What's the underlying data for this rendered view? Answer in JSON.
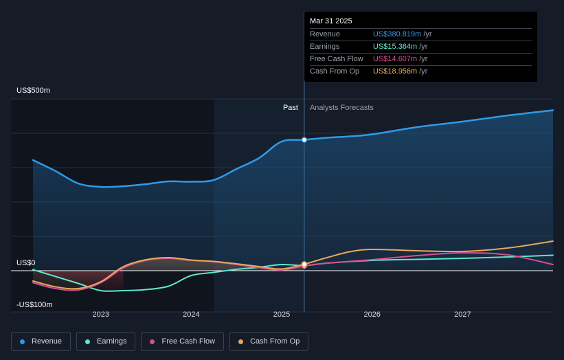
{
  "tooltip": {
    "date": "Mar 31 2025",
    "rows": [
      {
        "label": "Revenue",
        "value": "US$380.819m",
        "unit": "/yr",
        "color": "#2f9ae9"
      },
      {
        "label": "Earnings",
        "value": "US$15.364m",
        "unit": "/yr",
        "color": "#5ee6cf"
      },
      {
        "label": "Free Cash Flow",
        "value": "US$14.607m",
        "unit": "/yr",
        "color": "#d64f8e"
      },
      {
        "label": "Cash From Op",
        "value": "US$18.956m",
        "unit": "/yr",
        "color": "#e8a85c"
      }
    ]
  },
  "legend": [
    {
      "label": "Revenue",
      "color": "#2f9ae9"
    },
    {
      "label": "Earnings",
      "color": "#5ee6cf"
    },
    {
      "label": "Free Cash Flow",
      "color": "#d64f8e"
    },
    {
      "label": "Cash From Op",
      "color": "#e8a85c"
    }
  ],
  "chart_data": {
    "type": "line",
    "x_unit": "year",
    "xlim": [
      2022.25,
      2028.0
    ],
    "ylim": [
      -100,
      500
    ],
    "y_ticks": [
      {
        "value": 500,
        "label": "US$500m"
      },
      {
        "value": 0,
        "label": "US$0"
      },
      {
        "value": -100,
        "label": "-US$100m"
      }
    ],
    "x_ticks": [
      {
        "value": 2023,
        "label": "2023"
      },
      {
        "value": 2024,
        "label": "2024"
      },
      {
        "value": 2025,
        "label": "2025"
      },
      {
        "value": 2026,
        "label": "2026"
      },
      {
        "value": 2027,
        "label": "2027"
      }
    ],
    "past_label": "Past",
    "forecast_label": "Analysts Forecasts",
    "divider_x": 2025.25,
    "shade_start_x": 2024.25,
    "marker_x": 2025.25,
    "series": [
      {
        "name": "Revenue",
        "color": "#2f9ae9",
        "fill": true,
        "points": [
          [
            2022.25,
            322
          ],
          [
            2022.5,
            290
          ],
          [
            2022.75,
            254
          ],
          [
            2023.0,
            244
          ],
          [
            2023.25,
            246
          ],
          [
            2023.5,
            252
          ],
          [
            2023.75,
            260
          ],
          [
            2024.0,
            259
          ],
          [
            2024.25,
            264
          ],
          [
            2024.5,
            296
          ],
          [
            2024.75,
            328
          ],
          [
            2025.0,
            376
          ],
          [
            2025.25,
            381
          ],
          [
            2025.5,
            387
          ],
          [
            2025.75,
            391
          ],
          [
            2026.0,
            397
          ],
          [
            2026.5,
            418
          ],
          [
            2027.0,
            434
          ],
          [
            2027.5,
            452
          ],
          [
            2028.0,
            467
          ]
        ]
      },
      {
        "name": "Earnings",
        "color": "#5ee6cf",
        "fill": false,
        "points": [
          [
            2022.25,
            3
          ],
          [
            2022.5,
            -17
          ],
          [
            2022.75,
            -37
          ],
          [
            2023.0,
            -58
          ],
          [
            2023.25,
            -58
          ],
          [
            2023.5,
            -55
          ],
          [
            2023.75,
            -45
          ],
          [
            2024.0,
            -14
          ],
          [
            2024.25,
            -5
          ],
          [
            2024.5,
            4
          ],
          [
            2024.75,
            10
          ],
          [
            2025.0,
            18
          ],
          [
            2025.25,
            15
          ],
          [
            2025.5,
            22
          ],
          [
            2026.0,
            30
          ],
          [
            2026.5,
            33
          ],
          [
            2027.0,
            36
          ],
          [
            2027.5,
            40
          ],
          [
            2028.0,
            45
          ]
        ]
      },
      {
        "name": "Free Cash Flow",
        "color": "#d64f8e",
        "fill": false,
        "points": [
          [
            2022.25,
            -35
          ],
          [
            2022.5,
            -52
          ],
          [
            2022.75,
            -56
          ],
          [
            2023.0,
            -35
          ],
          [
            2023.25,
            8
          ],
          [
            2023.5,
            30
          ],
          [
            2023.75,
            36
          ],
          [
            2024.0,
            30
          ],
          [
            2024.25,
            26
          ],
          [
            2024.5,
            18
          ],
          [
            2024.75,
            9
          ],
          [
            2025.0,
            2
          ],
          [
            2025.25,
            14
          ],
          [
            2025.5,
            22
          ],
          [
            2026.0,
            32
          ],
          [
            2026.5,
            44
          ],
          [
            2027.0,
            52
          ],
          [
            2027.5,
            46
          ],
          [
            2028.0,
            18
          ]
        ]
      },
      {
        "name": "Cash From Op",
        "color": "#e8a85c",
        "fill": false,
        "points": [
          [
            2022.25,
            -30
          ],
          [
            2022.5,
            -47
          ],
          [
            2022.75,
            -52
          ],
          [
            2023.0,
            -32
          ],
          [
            2023.25,
            12
          ],
          [
            2023.5,
            32
          ],
          [
            2023.75,
            38
          ],
          [
            2024.0,
            31
          ],
          [
            2024.25,
            27
          ],
          [
            2024.5,
            20
          ],
          [
            2024.75,
            12
          ],
          [
            2025.0,
            5
          ],
          [
            2025.25,
            19
          ],
          [
            2025.5,
            38
          ],
          [
            2025.75,
            55
          ],
          [
            2026.0,
            62
          ],
          [
            2026.5,
            58
          ],
          [
            2027.0,
            56
          ],
          [
            2027.5,
            66
          ],
          [
            2028.0,
            86
          ]
        ]
      }
    ]
  }
}
